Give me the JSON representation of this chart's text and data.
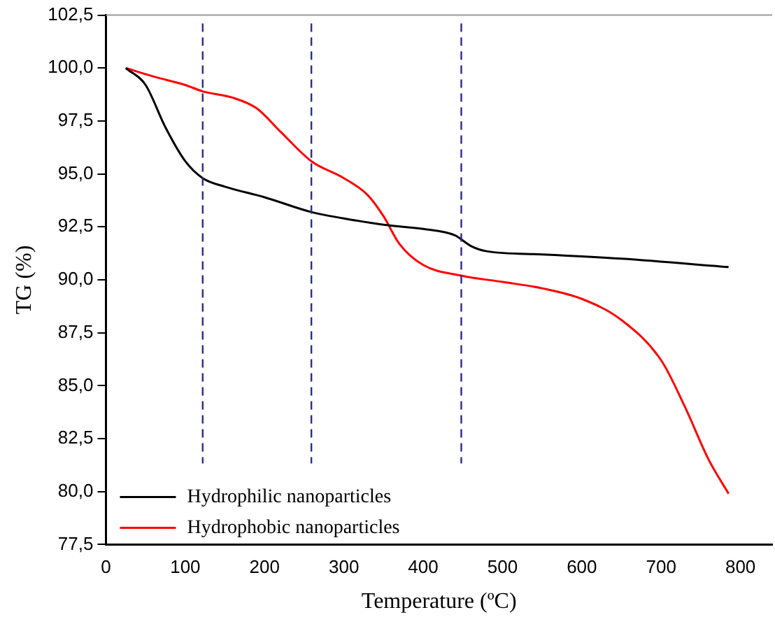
{
  "chart_data": {
    "type": "line",
    "xlabel": "Temperature (ºC)",
    "ylabel": "TG (%)",
    "xlim": [
      0,
      840
    ],
    "xticks": [
      0,
      100,
      200,
      300,
      400,
      500,
      600,
      700,
      800
    ],
    "ylim": [
      77.5,
      102.5
    ],
    "yticks": [
      {
        "value": 77.5,
        "label": "77,5"
      },
      {
        "value": 80,
        "label": "80,0"
      },
      {
        "value": 82.5,
        "label": "82,5"
      },
      {
        "value": 85,
        "label": "85,0"
      },
      {
        "value": 87.5,
        "label": "87,5"
      },
      {
        "value": 90,
        "label": "90,0"
      },
      {
        "value": 92.5,
        "label": "92,5"
      },
      {
        "value": 95,
        "label": "95,0"
      },
      {
        "value": 97.5,
        "label": "97,5"
      },
      {
        "value": 100,
        "label": "100,0"
      },
      {
        "value": 102.5,
        "label": "102,5"
      }
    ],
    "grid": false,
    "legend": "bottom left",
    "marker": "none",
    "line_style": "solid",
    "series": [
      {
        "name": "Hydrophilic nanoparticles",
        "color": "#000000",
        "x": [
          25,
          50,
          75,
          100,
          122,
          150,
          200,
          259,
          300,
          350,
          400,
          440,
          460,
          480,
          550,
          650,
          785
        ],
        "values": [
          100,
          99.2,
          97.2,
          95.6,
          94.8,
          94.4,
          93.9,
          93.2,
          92.9,
          92.6,
          92.4,
          92.1,
          91.6,
          91.35,
          91.2,
          91.0,
          90.6
        ]
      },
      {
        "name": "Hydrophobic nanoparticles",
        "color": "#ff0000",
        "x": [
          25,
          60,
          100,
          122,
          160,
          190,
          220,
          259,
          300,
          330,
          350,
          370,
          400,
          448,
          500,
          550,
          600,
          650,
          700,
          730,
          760,
          785
        ],
        "values": [
          100,
          99.6,
          99.2,
          98.9,
          98.6,
          98.1,
          97.0,
          95.6,
          94.8,
          94.0,
          93.0,
          91.7,
          90.7,
          90.2,
          89.9,
          89.6,
          89.1,
          88.1,
          86.2,
          84.0,
          81.5,
          79.9
        ]
      }
    ],
    "ref_lines": [
      {
        "axis": "x",
        "value": 122,
        "color": "#2b2b8f",
        "line_style": "dashed"
      },
      {
        "axis": "x",
        "value": 259,
        "color": "#2b2b8f",
        "line_style": "dashed"
      },
      {
        "axis": "x",
        "value": 448,
        "color": "#2b2b8f",
        "line_style": "dashed"
      }
    ]
  }
}
